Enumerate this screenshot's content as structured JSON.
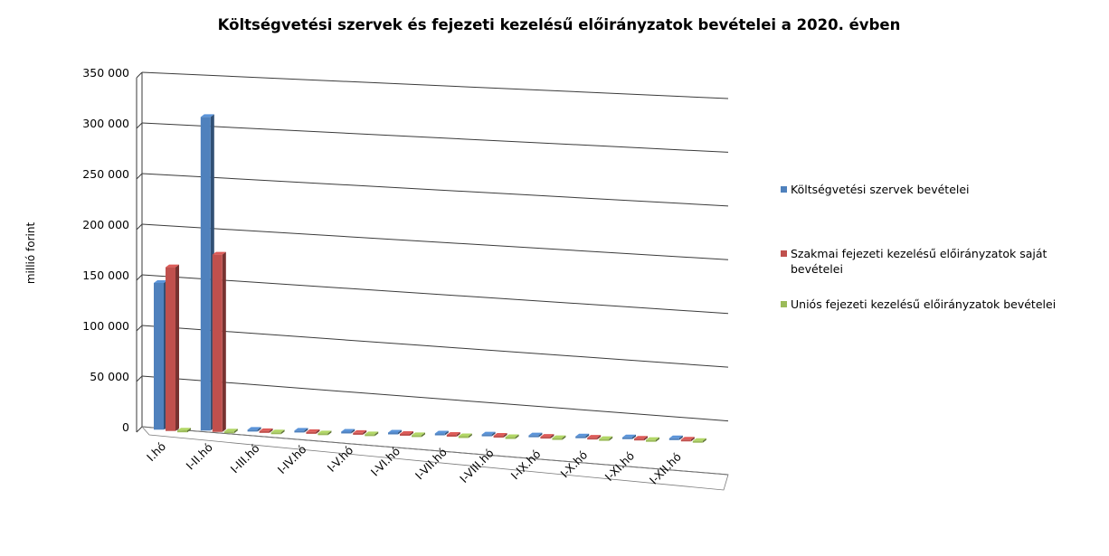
{
  "chart_data": {
    "type": "bar",
    "title": "Költségvetési szervek és fejezeti kezelésű előirányzatok bevételei a 2020. évben",
    "xlabel": "",
    "ylabel": "millió forint",
    "ylim": [
      0,
      350000
    ],
    "yticks": [
      "0",
      "50 000",
      "100 000",
      "150 000",
      "200 000",
      "250 000",
      "300 000",
      "350 000"
    ],
    "ytick_values": [
      0,
      50000,
      100000,
      150000,
      200000,
      250000,
      300000,
      350000
    ],
    "categories": [
      "I.hó",
      "I-II.hó",
      "I-III.hó",
      "I-IV.hó",
      "I-V.hó",
      "I-VI.hó",
      "I-VII.hó",
      "I-VIII.hó",
      "I-IX.hó",
      "I-X.hó",
      "I-XI.hó",
      "I-XII.hó"
    ],
    "series": [
      {
        "name": "Költségvetési szervek bevételei",
        "color": "#4f81bd",
        "values": [
          145000,
          311000,
          0,
          0,
          0,
          0,
          0,
          0,
          0,
          0,
          0,
          0
        ]
      },
      {
        "name": "Szakmai fejezeti kezelésű előirányzatok saját bevételei",
        "color": "#c0504d",
        "values": [
          162000,
          176000,
          0,
          0,
          0,
          0,
          0,
          0,
          0,
          0,
          0,
          0
        ]
      },
      {
        "name": "Uniós fejezeti kezelésű előirányzatok bevételei",
        "color": "#9bbb59",
        "values": [
          500,
          800,
          0,
          0,
          0,
          0,
          0,
          0,
          0,
          0,
          0,
          0
        ]
      }
    ],
    "legend_lines": [
      [
        "Költségvetési szervek bevételei"
      ],
      [
        "Szakmai fejezeti kezelésű előirányzatok saját",
        "bevételei"
      ],
      [
        "Uniós fejezeti kezelésű előirányzatok bevételei"
      ]
    ],
    "legend_position": "right",
    "grid": true,
    "style": "3d-clustered-column"
  }
}
